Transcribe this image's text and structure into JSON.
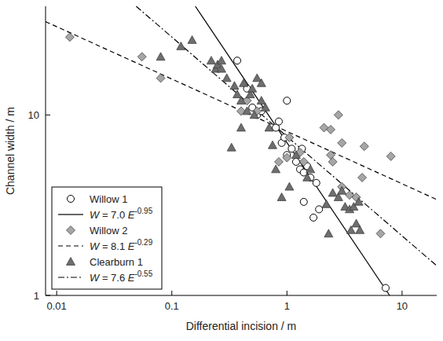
{
  "chart_data": {
    "type": "scatter",
    "x_label": "Differential incision / m",
    "y_label": "Channel width / m",
    "log": true,
    "legend": "lower left",
    "xlim": [
      0.008,
      20
    ],
    "ylim": [
      1,
      40
    ],
    "xticks": [
      0.01,
      0.1,
      1,
      10
    ],
    "yticks": [
      1,
      10
    ],
    "series": [
      {
        "name": "Willow 1",
        "type": "scatter",
        "marker": "circle-open",
        "color": "#000000",
        "x": [
          0.37,
          0.45,
          0.5,
          0.55,
          0.6,
          0.8,
          0.85,
          0.9,
          0.95,
          1.0,
          1.0,
          1.1,
          1.2,
          1.3,
          1.35,
          1.4,
          1.4,
          1.5,
          1.6,
          1.7,
          1.8,
          1.9,
          7.2
        ],
        "values": [
          20,
          14,
          11,
          10,
          10.5,
          8.5,
          9.2,
          7,
          7.5,
          12,
          6,
          6.5,
          5.5,
          5,
          6.5,
          3.3,
          4.8,
          5.2,
          4.5,
          2.7,
          4.2,
          3,
          1.1
        ]
      },
      {
        "name": "W = 7.0 E-0.95",
        "type": "line",
        "line_style": "solid",
        "color": "#000000",
        "x": [
          0.16,
          7.8
        ],
        "values": [
          40,
          1
        ]
      },
      {
        "name": "Willow 2",
        "type": "scatter",
        "marker": "diamond",
        "color": "#a6a6a6",
        "x": [
          0.013,
          0.055,
          0.08,
          0.4,
          0.45,
          0.55,
          0.85,
          1.0,
          1.05,
          1.3,
          1.4,
          2.1,
          2.4,
          2.4,
          2.5,
          2.8,
          3,
          3,
          3.5,
          4,
          4.5,
          4.7,
          6.5,
          8
        ],
        "values": [
          27,
          21,
          16,
          10.5,
          12,
          10.5,
          5.5,
          5.8,
          7.5,
          6.2,
          5.5,
          8.5,
          8.3,
          6,
          5.5,
          10,
          7,
          4,
          3.6,
          3.5,
          4.5,
          6.7,
          2.2,
          5.9
        ]
      },
      {
        "name": "W = 8.1 E-0.29",
        "type": "line",
        "line_style": "dashed",
        "color": "#000000",
        "x": [
          0.008,
          20
        ],
        "values": [
          32.9,
          3.4
        ]
      },
      {
        "name": "Clearburn 1",
        "type": "scatter",
        "marker": "triangle",
        "color": "#6e6e6e",
        "x": [
          0.08,
          0.12,
          0.15,
          0.22,
          0.24,
          0.25,
          0.27,
          0.27,
          0.3,
          0.33,
          0.35,
          0.37,
          0.4,
          0.4,
          0.42,
          0.45,
          0.48,
          0.5,
          0.52,
          0.55,
          0.6,
          0.6,
          0.65,
          0.7,
          0.75,
          0.8,
          0.9,
          1.05,
          1.2,
          1.5,
          1.6,
          2.2,
          2.3,
          2.5,
          2.8,
          3,
          3.2,
          3.5,
          3.6,
          3.8,
          4,
          4.2,
          4.3
        ],
        "values": [
          21,
          24,
          26,
          20,
          18,
          19,
          20,
          18,
          16,
          6.6,
          14.5,
          13,
          12,
          8.5,
          15,
          10.5,
          13,
          14,
          10,
          16,
          15,
          12,
          11,
          8.5,
          6.8,
          5,
          3.5,
          4,
          6,
          4.5,
          5,
          3.2,
          2.2,
          3.7,
          3.5,
          3.8,
          3.1,
          3,
          2.3,
          3.1,
          2.5,
          3.3,
          2.3
        ]
      },
      {
        "name": "W = 7.6 E-0.55",
        "type": "line",
        "line_style": "dashdot",
        "color": "#000000",
        "x": [
          0.049,
          20
        ],
        "values": [
          40,
          1.46
        ]
      }
    ]
  }
}
